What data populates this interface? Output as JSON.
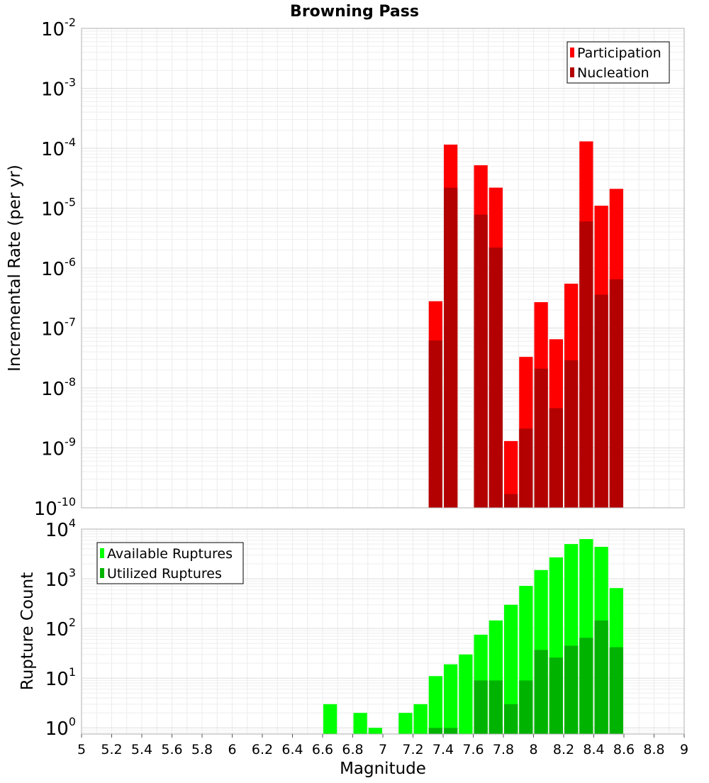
{
  "chart_data": [
    {
      "type": "bar",
      "title": "Browning Pass",
      "xlabel": "",
      "ylabel": "Incremental Rate (per yr)",
      "yscale": "log",
      "ylim": [
        1e-10,
        0.01
      ],
      "xlim": [
        5,
        9
      ],
      "grid": true,
      "legend_position": "top-right",
      "y_ticks": [
        {
          "base": "10",
          "exp": "-10",
          "value": 1e-10
        },
        {
          "base": "10",
          "exp": "-9",
          "value": 1e-09
        },
        {
          "base": "10",
          "exp": "-8",
          "value": 1e-08
        },
        {
          "base": "10",
          "exp": "-7",
          "value": 1e-07
        },
        {
          "base": "10",
          "exp": "-6",
          "value": 1e-06
        },
        {
          "base": "10",
          "exp": "-5",
          "value": 1e-05
        },
        {
          "base": "10",
          "exp": "-4",
          "value": 0.0001
        },
        {
          "base": "10",
          "exp": "-3",
          "value": 0.001
        },
        {
          "base": "10",
          "exp": "-2",
          "value": 0.01
        }
      ],
      "series": [
        {
          "name": "Participation",
          "color": "#ff0000",
          "points": [
            {
              "x": 7.35,
              "y": 2.8e-07
            },
            {
              "x": 7.45,
              "y": 0.000115
            },
            {
              "x": 7.65,
              "y": 5.2e-05
            },
            {
              "x": 7.75,
              "y": 2.2e-05
            },
            {
              "x": 7.85,
              "y": 1.3e-09
            },
            {
              "x": 7.95,
              "y": 3.3e-08
            },
            {
              "x": 8.05,
              "y": 2.7e-07
            },
            {
              "x": 8.15,
              "y": 6.5e-08
            },
            {
              "x": 8.25,
              "y": 5.5e-07
            },
            {
              "x": 8.35,
              "y": 0.00013
            },
            {
              "x": 8.45,
              "y": 1.1e-05
            },
            {
              "x": 8.55,
              "y": 2.1e-05
            }
          ]
        },
        {
          "name": "Nucleation",
          "color": "#b30000",
          "points": [
            {
              "x": 7.35,
              "y": 6.2e-08
            },
            {
              "x": 7.45,
              "y": 2.2e-05
            },
            {
              "x": 7.65,
              "y": 7.8e-06
            },
            {
              "x": 7.75,
              "y": 2.2e-06
            },
            {
              "x": 7.85,
              "y": 1.7e-10
            },
            {
              "x": 7.95,
              "y": 2.1e-09
            },
            {
              "x": 8.05,
              "y": 2.1e-08
            },
            {
              "x": 8.15,
              "y": 4.6e-09
            },
            {
              "x": 8.25,
              "y": 2.9e-08
            },
            {
              "x": 8.35,
              "y": 6e-06
            },
            {
              "x": 8.45,
              "y": 3.6e-07
            },
            {
              "x": 8.55,
              "y": 6.5e-07
            }
          ]
        }
      ]
    },
    {
      "type": "bar",
      "title": "",
      "xlabel": "Magnitude",
      "ylabel": "Rupture Count",
      "yscale": "log",
      "ylim": [
        0.75,
        10000
      ],
      "xlim": [
        5,
        9
      ],
      "grid": true,
      "legend_position": "top-left",
      "x_ticks": [
        "5",
        "5.2",
        "5.4",
        "5.6",
        "5.8",
        "6",
        "6.2",
        "6.4",
        "6.6",
        "6.8",
        "7",
        "7.2",
        "7.4",
        "7.6",
        "7.8",
        "8",
        "8.2",
        "8.4",
        "8.6",
        "8.8",
        "9"
      ],
      "y_ticks": [
        {
          "base": "10",
          "exp": "0",
          "value": 1
        },
        {
          "base": "10",
          "exp": "1",
          "value": 10
        },
        {
          "base": "10",
          "exp": "2",
          "value": 100
        },
        {
          "base": "10",
          "exp": "3",
          "value": 1000
        },
        {
          "base": "10",
          "exp": "4",
          "value": 10000
        }
      ],
      "series": [
        {
          "name": "Available Ruptures",
          "color": "#00ff00",
          "points": [
            {
              "x": 6.65,
              "y": 3
            },
            {
              "x": 6.85,
              "y": 2
            },
            {
              "x": 6.95,
              "y": 1
            },
            {
              "x": 7.15,
              "y": 2
            },
            {
              "x": 7.25,
              "y": 3
            },
            {
              "x": 7.35,
              "y": 11
            },
            {
              "x": 7.45,
              "y": 19
            },
            {
              "x": 7.55,
              "y": 30
            },
            {
              "x": 7.65,
              "y": 75
            },
            {
              "x": 7.75,
              "y": 145
            },
            {
              "x": 7.85,
              "y": 300
            },
            {
              "x": 7.95,
              "y": 720
            },
            {
              "x": 8.05,
              "y": 1500
            },
            {
              "x": 8.15,
              "y": 2700
            },
            {
              "x": 8.25,
              "y": 5000
            },
            {
              "x": 8.35,
              "y": 6300
            },
            {
              "x": 8.45,
              "y": 4400
            },
            {
              "x": 8.55,
              "y": 650
            }
          ]
        },
        {
          "name": "Utilized Ruptures",
          "color": "#00b300",
          "points": [
            {
              "x": 7.35,
              "y": 1
            },
            {
              "x": 7.45,
              "y": 1
            },
            {
              "x": 7.65,
              "y": 9
            },
            {
              "x": 7.75,
              "y": 9
            },
            {
              "x": 7.85,
              "y": 3
            },
            {
              "x": 7.95,
              "y": 9
            },
            {
              "x": 8.05,
              "y": 37
            },
            {
              "x": 8.15,
              "y": 26
            },
            {
              "x": 8.25,
              "y": 45
            },
            {
              "x": 8.35,
              "y": 65
            },
            {
              "x": 8.45,
              "y": 145
            },
            {
              "x": 8.55,
              "y": 42
            }
          ]
        }
      ]
    }
  ]
}
